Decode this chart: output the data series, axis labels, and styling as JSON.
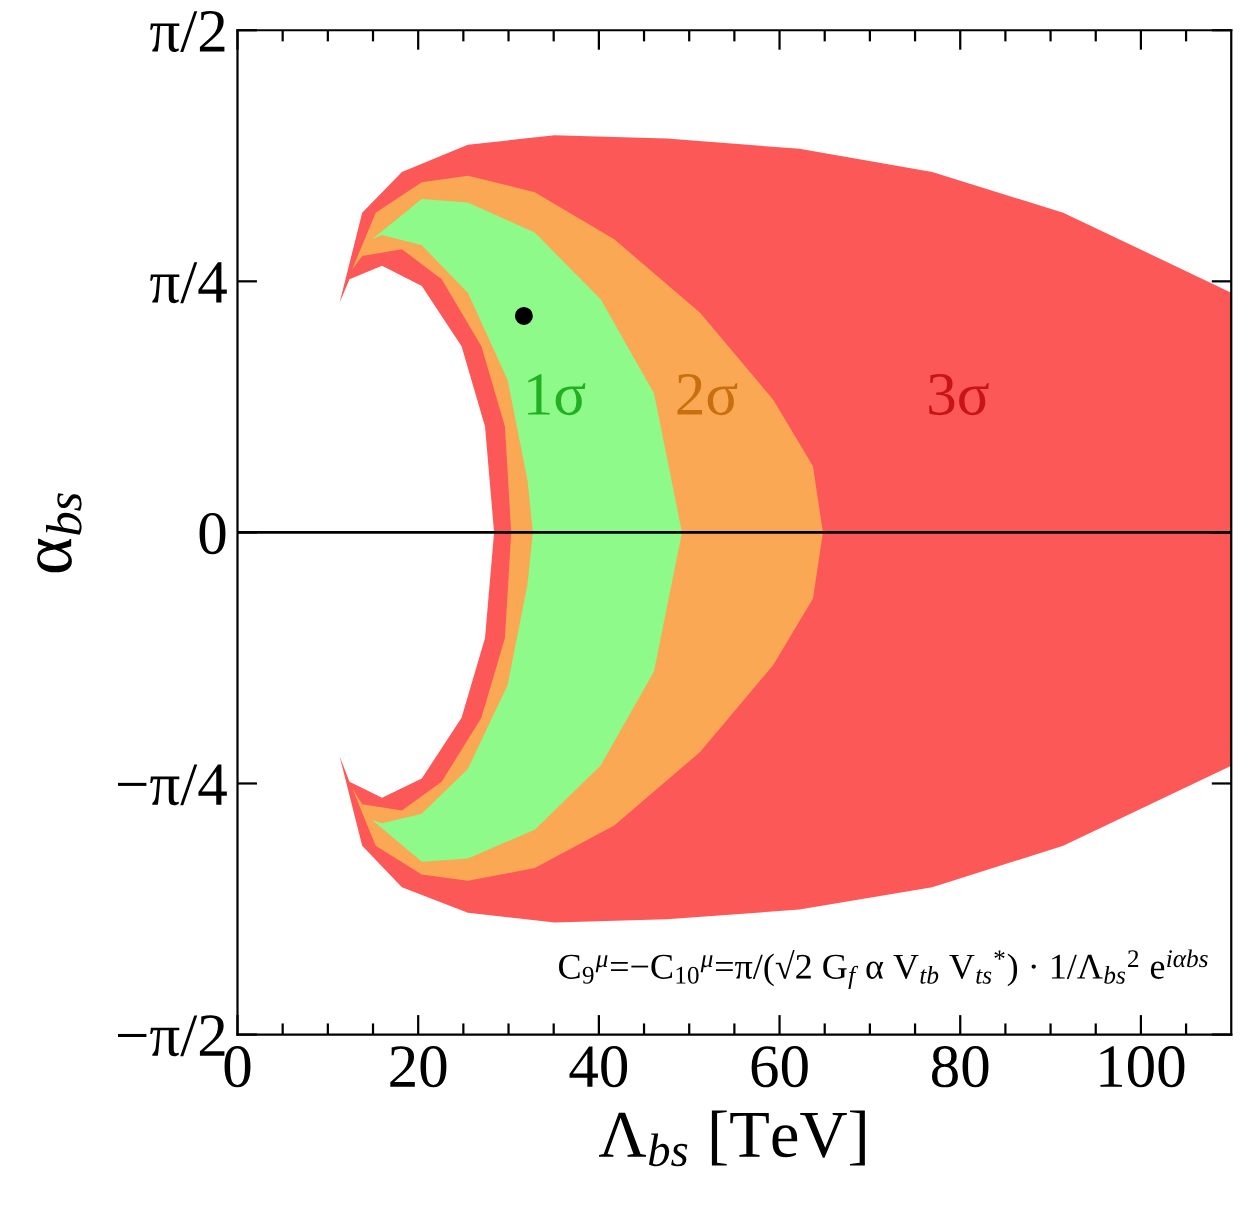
{
  "chart_data": {
    "type": "area",
    "xlabel": "Λ$_{bs}$ [TeV]",
    "ylabel": "α$_{bs}$",
    "xlim": [
      0,
      110
    ],
    "xticks": [
      0,
      20,
      40,
      60,
      80,
      100
    ],
    "ylim": [
      -1.5708,
      1.5708
    ],
    "yticks": [
      {
        "value": -1.5708,
        "label": "−π/2"
      },
      {
        "value": -0.7854,
        "label": "−π/4"
      },
      {
        "value": 0,
        "label": "0"
      },
      {
        "value": 0.7854,
        "label": "π/4"
      },
      {
        "value": 1.5708,
        "label": "π/2"
      }
    ],
    "grid": false,
    "legend": false,
    "series": [
      {
        "color": "#fd5858",
        "x": [
          11.3,
          13.8,
          18.2,
          25.5,
          35.1,
          47.5,
          62.2,
          76.9,
          91.4,
          110,
          110,
          91.4,
          76.9,
          62.2,
          47.5,
          35.1,
          25.5,
          18.2,
          13.8,
          11.3,
          12.4,
          16.0,
          20.4,
          24.8,
          27.4,
          28.4,
          27.4,
          24.8,
          20.4,
          16.0,
          12.4
        ],
        "values": [
          0.718,
          1.0,
          1.127,
          1.213,
          1.242,
          1.232,
          1.2,
          1.127,
          1.0,
          0.75,
          -0.73,
          -0.98,
          -1.11,
          -1.18,
          -1.21,
          -1.22,
          -1.19,
          -1.11,
          -0.98,
          -0.7,
          -0.78,
          -0.83,
          -0.77,
          -0.58,
          -0.33,
          0,
          0.331,
          0.582,
          0.771,
          0.834,
          0.792
        ]
      },
      {
        "color": "#fba855",
        "x": [
          12.7,
          15.3,
          20.4,
          25.5,
          32.9,
          41.7,
          51.2,
          59.3,
          63.7,
          64.8,
          63.7,
          59.3,
          51.2,
          41.7,
          32.9,
          25.5,
          20.4,
          15.3,
          12.7,
          13.8,
          18.2,
          22.6,
          27.0,
          29.6,
          30.3,
          29.6,
          27.0,
          22.6,
          18.2,
          13.8
        ],
        "values": [
          0.823,
          1.0,
          1.095,
          1.116,
          1.064,
          0.917,
          0.687,
          0.415,
          0.207,
          0,
          -0.207,
          -0.415,
          -0.687,
          -0.917,
          -1.05,
          -1.09,
          -1.07,
          -0.98,
          -0.8,
          -0.85,
          -0.87,
          -0.78,
          -0.58,
          -0.33,
          0,
          0.331,
          0.582,
          0.792,
          0.886,
          0.865
        ]
      },
      {
        "color": "#8efa8a",
        "x": [
          14.9,
          20.4,
          25.5,
          32.9,
          40.2,
          46.1,
          49.2,
          46.1,
          40.2,
          32.9,
          25.5,
          20.4,
          14.9,
          16.0,
          20.4,
          25.5,
          29.9,
          32.1,
          32.7,
          32.1,
          29.9,
          25.5,
          20.4,
          16.0
        ],
        "values": [
          0.917,
          1.043,
          1.032,
          0.938,
          0.729,
          0.435,
          0,
          -0.435,
          -0.729,
          -0.93,
          -1.02,
          -1.03,
          -0.9,
          -0.91,
          -0.88,
          -0.74,
          -0.477,
          -0.163,
          0,
          0.163,
          0.477,
          0.75,
          0.898,
          0.93
        ]
      },
      {
        "type": "scatter",
        "color": "#000000",
        "marker": "circle",
        "x": [
          31.7
        ],
        "values": [
          0.677
        ]
      }
    ],
    "ref_lines": [
      {
        "axis": "y",
        "value": 0,
        "color": "#000000"
      }
    ],
    "annotations": [
      "1σ",
      "2σ",
      "3σ",
      "C$_{9}$$^{μ}$=−C$_{10}$$^{μ}$=π/(√2 G$_{f}$ α V$_{tb}$ V$_{ts}$$^{*}$) · 1/Λ$_{bs}$$^{2}$ e$^{iαbs}$"
    ]
  }
}
